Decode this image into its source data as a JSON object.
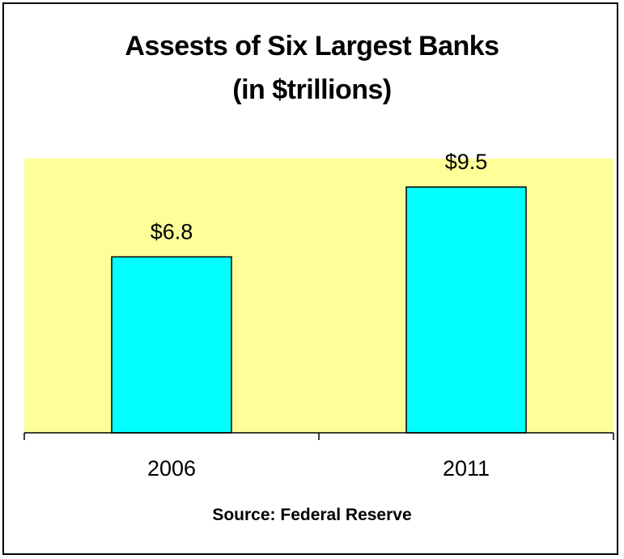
{
  "chart_data": {
    "type": "bar",
    "title": "Assests of Six Largest Banks",
    "subtitle": "(in $trillions)",
    "categories": [
      "2006",
      "2011"
    ],
    "values": [
      6.8,
      9.5
    ],
    "value_labels": [
      "$6.8",
      "$9.5"
    ],
    "ylim": [
      0,
      10.6
    ],
    "grid": false,
    "legend": "none",
    "source": "Source: Federal Reserve",
    "colors": {
      "plot_background": "#ffff99",
      "bar_fill": "#00ffff",
      "bar_stroke": "#000000"
    }
  }
}
